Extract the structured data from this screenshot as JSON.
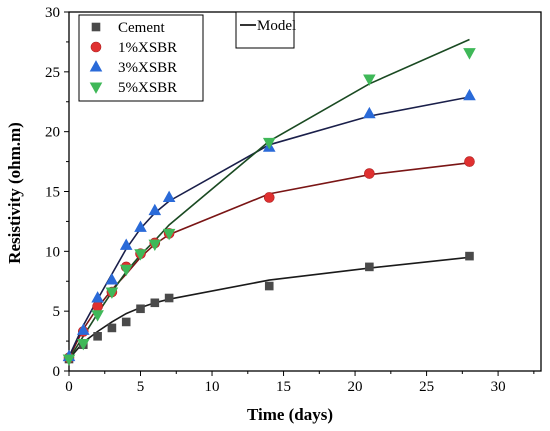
{
  "chart_data": {
    "type": "scatter",
    "xlabel": "Time (days)",
    "ylabel": "Resistivity (ohm.m)",
    "xlim": [
      0,
      33
    ],
    "ylim": [
      0,
      30
    ],
    "xticks": [
      0,
      5,
      10,
      15,
      20,
      25,
      30
    ],
    "yticks": [
      0,
      5,
      10,
      15,
      20,
      25,
      30
    ],
    "xtick_labels": [
      "0",
      "5",
      "10",
      "15",
      "20",
      "25",
      "30"
    ],
    "ytick_labels": [
      "0",
      "5",
      "10",
      "15",
      "20",
      "25",
      "30"
    ],
    "grid": false,
    "legend_placement": "top-left",
    "model_legend": {
      "name": "Model",
      "placement": "top-center"
    },
    "series": [
      {
        "name": "Cement",
        "marker": "square",
        "color": "#4a4a4a",
        "line_color": "#1a1a1a",
        "x": [
          0,
          1,
          2,
          3,
          4,
          5,
          6,
          7,
          14,
          21,
          28
        ],
        "y": [
          1.0,
          2.2,
          2.9,
          3.6,
          4.1,
          5.2,
          5.7,
          6.1,
          7.1,
          8.7,
          9.6
        ],
        "model_x": [
          0,
          1,
          2,
          3,
          4,
          5,
          6,
          7,
          14,
          21,
          28
        ],
        "model_y": [
          1.0,
          2.4,
          3.3,
          4.1,
          4.8,
          5.3,
          5.7,
          6.0,
          7.6,
          8.6,
          9.5
        ]
      },
      {
        "name": "1%XSBR",
        "marker": "circle",
        "color": "#e03030",
        "line_color": "#7a1515",
        "x": [
          0,
          1,
          2,
          3,
          4,
          5,
          6,
          7,
          14,
          21,
          28
        ],
        "y": [
          1.1,
          3.3,
          5.4,
          6.6,
          8.7,
          9.8,
          10.7,
          11.5,
          14.5,
          16.5,
          17.5
        ],
        "model_x": [
          0,
          1,
          2,
          3,
          4,
          5,
          6,
          7,
          14,
          21,
          28
        ],
        "model_y": [
          1.1,
          3.5,
          5.3,
          6.8,
          8.1,
          9.5,
          10.6,
          11.4,
          14.8,
          16.4,
          17.4
        ]
      },
      {
        "name": "3%XSBR",
        "marker": "triangle-up",
        "color": "#2a6ad8",
        "line_color": "#1a1f4a",
        "x": [
          0,
          1,
          2,
          3,
          4,
          5,
          6,
          7,
          14,
          21,
          28
        ],
        "y": [
          1.2,
          3.4,
          6.1,
          7.6,
          10.5,
          12.0,
          13.4,
          14.5,
          18.7,
          21.5,
          23.0
        ],
        "model_x": [
          0,
          1,
          2,
          3,
          4,
          5,
          6,
          7,
          14,
          21,
          28
        ],
        "model_y": [
          1.2,
          3.8,
          6.0,
          8.1,
          10.2,
          11.9,
          13.2,
          14.2,
          18.9,
          21.3,
          22.9
        ]
      },
      {
        "name": "5%XSBR",
        "marker": "triangle-down",
        "color": "#3fb858",
        "line_color": "#1a4a22",
        "x": [
          0,
          1,
          2,
          3,
          4,
          5,
          6,
          7,
          14,
          21,
          28
        ],
        "y": [
          1.0,
          2.3,
          4.7,
          6.6,
          8.5,
          9.8,
          10.6,
          11.5,
          19.1,
          24.4,
          26.6
        ],
        "model_x": [
          0,
          1,
          2,
          3,
          4,
          5,
          6,
          7,
          14,
          21,
          28
        ],
        "model_y": [
          1.0,
          2.9,
          4.8,
          6.6,
          8.3,
          9.7,
          10.9,
          12.2,
          19.2,
          24.0,
          27.7
        ]
      }
    ]
  }
}
